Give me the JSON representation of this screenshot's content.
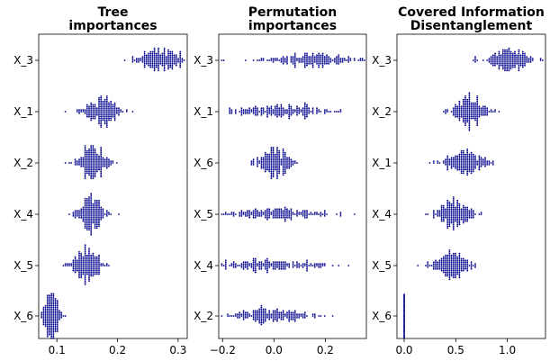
{
  "chart_data": [
    {
      "type": "scatter",
      "subtype": "swarm",
      "title_lines": [
        "Tree",
        "importances"
      ],
      "categories": [
        "X_3",
        "X_1",
        "X_2",
        "X_4",
        "X_5",
        "X_6"
      ],
      "centers": [
        0.27,
        0.175,
        0.16,
        0.155,
        0.15,
        0.09
      ],
      "spreads": [
        0.022,
        0.018,
        0.014,
        0.014,
        0.014,
        0.008
      ],
      "xlim": [
        0.07,
        0.315
      ],
      "xticks": [
        0.1,
        0.2,
        0.3
      ],
      "xtick_labels": [
        "0.1",
        "0.2",
        "0.3"
      ],
      "point_color": "#00008b"
    },
    {
      "type": "scatter",
      "subtype": "swarm",
      "title_lines": [
        "Permutation",
        "importances"
      ],
      "categories": [
        "X_3",
        "X_1",
        "X_6",
        "X_5",
        "X_4",
        "X_2"
      ],
      "centers": [
        0.15,
        0.02,
        0.0,
        0.0,
        -0.02,
        -0.02
      ],
      "spreads": [
        0.12,
        0.1,
        0.04,
        0.12,
        0.12,
        0.09
      ],
      "xlim": [
        -0.215,
        0.36
      ],
      "xticks": [
        -0.2,
        0.0,
        0.2
      ],
      "xtick_labels": [
        "−0.2",
        "0.0",
        "0.2"
      ],
      "point_color": "#00008b"
    },
    {
      "type": "scatter",
      "subtype": "swarm",
      "title_lines": [
        "Covered Information",
        "Disentanglement"
      ],
      "categories": [
        "X_3",
        "X_2",
        "X_1",
        "X_4",
        "X_5",
        "X_6"
      ],
      "centers": [
        1.02,
        0.62,
        0.6,
        0.47,
        0.47,
        0.0
      ],
      "spreads": [
        0.13,
        0.1,
        0.12,
        0.1,
        0.1,
        0.0
      ],
      "xlim": [
        -0.07,
        1.37
      ],
      "xticks": [
        0.0,
        0.5,
        1.0
      ],
      "xtick_labels": [
        "0.0",
        "0.5",
        "1.0"
      ],
      "point_color": "#00008b"
    }
  ]
}
